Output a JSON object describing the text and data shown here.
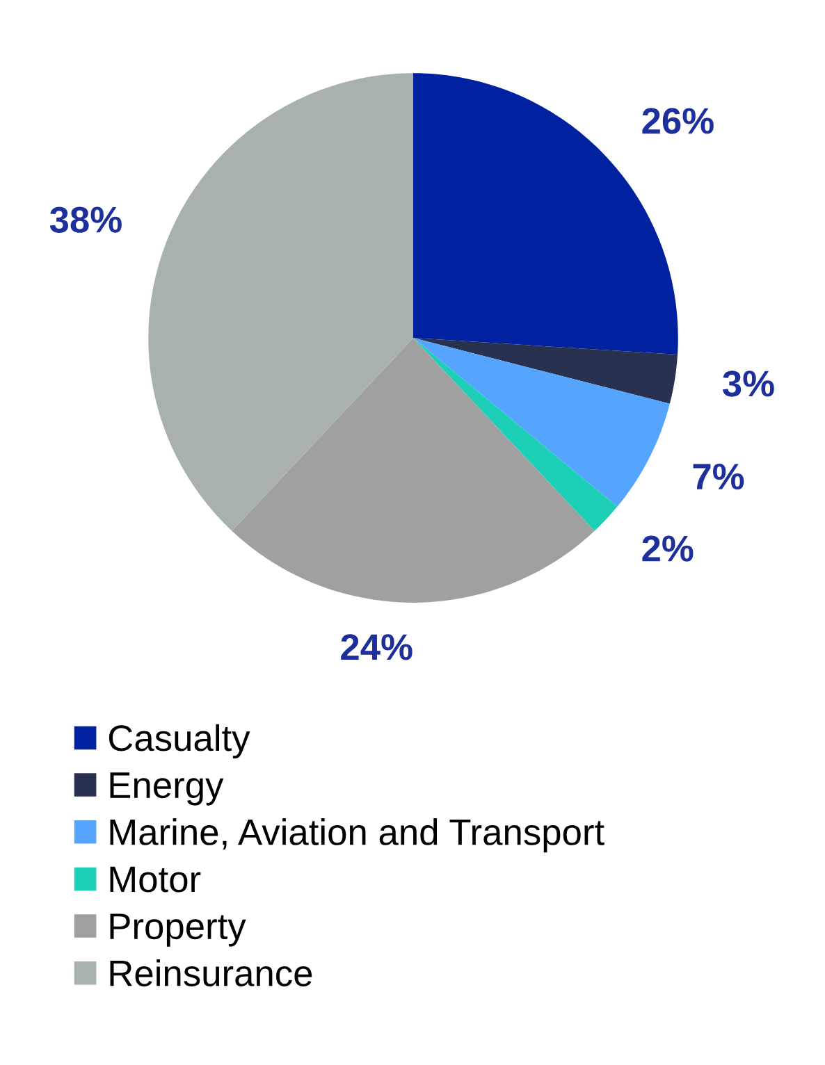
{
  "chart_data": {
    "type": "pie",
    "categories": [
      "Casualty",
      "Energy",
      "Marine, Aviation and Transport",
      "Motor",
      "Property",
      "Reinsurance"
    ],
    "values": [
      26,
      3,
      7,
      2,
      24,
      38
    ],
    "colors": [
      "#0022a0",
      "#283250",
      "#55a5ff",
      "#1ecfb8",
      "#a0a0a0",
      "#a8b0b0"
    ],
    "value_labels": [
      "26%",
      "3%",
      "7%",
      "2%",
      "24%",
      "38%"
    ],
    "legend": "bottom"
  }
}
